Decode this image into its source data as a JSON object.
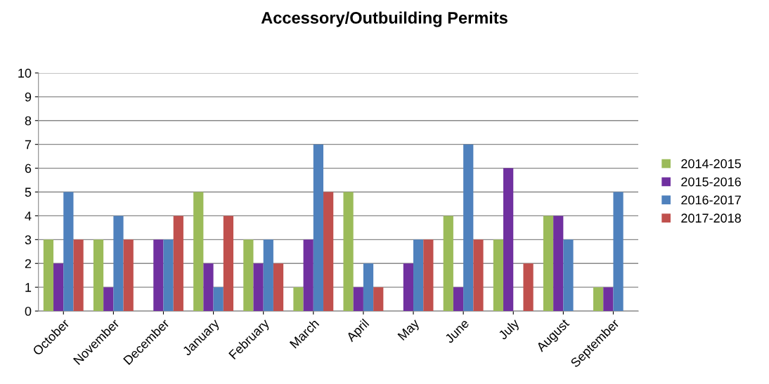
{
  "chart_data": {
    "type": "bar",
    "title": "Accessory/Outbuilding Permits",
    "categories": [
      "October",
      "November",
      "December",
      "January",
      "February",
      "March",
      "April",
      "May",
      "June",
      "July",
      "August",
      "September"
    ],
    "series": [
      {
        "name": "2014-2015",
        "color": "#9bbb59",
        "values": [
          3,
          3,
          0,
          5,
          3,
          1,
          5,
          0,
          4,
          3,
          4,
          1
        ]
      },
      {
        "name": "2015-2016",
        "color": "#7030a0",
        "values": [
          2,
          1,
          3,
          2,
          2,
          3,
          1,
          2,
          1,
          6,
          4,
          1
        ]
      },
      {
        "name": "2016-2017",
        "color": "#4f81bd",
        "values": [
          5,
          4,
          3,
          1,
          3,
          7,
          2,
          3,
          7,
          0,
          3,
          5
        ]
      },
      {
        "name": "2017-2018",
        "color": "#c0504d",
        "values": [
          3,
          3,
          4,
          4,
          2,
          5,
          1,
          3,
          3,
          2,
          0,
          0
        ]
      }
    ],
    "ylim": [
      0,
      10
    ],
    "yticks": [
      0,
      1,
      2,
      3,
      4,
      5,
      6,
      7,
      8,
      9,
      10
    ],
    "grid": "y",
    "legend": "right"
  }
}
